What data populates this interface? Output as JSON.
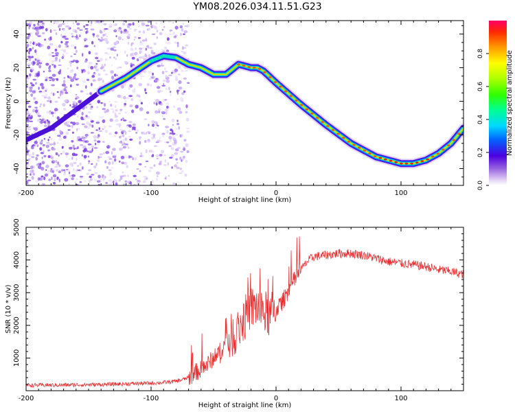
{
  "title": "YM08.2026.034.11.51.G23",
  "chart_data": [
    {
      "type": "heatmap",
      "title": "YM08.2026.034.11.51.G23",
      "xlabel": "Height of straight line (km)",
      "ylabel": "Frequency (Hz)",
      "xlim": [
        -200,
        150
      ],
      "ylim": [
        -50,
        48
      ],
      "xticks": [
        -200,
        -100,
        0,
        100
      ],
      "yticks": [
        -40,
        -20,
        0,
        20,
        40
      ],
      "colorbar": {
        "label": "Normalized spectral amplitude",
        "range": [
          0.0,
          1.0
        ],
        "ticks": [
          0.0,
          0.2,
          0.4,
          0.6,
          0.8
        ]
      },
      "ridge": {
        "x": [
          -200,
          -180,
          -160,
          -140,
          -120,
          -100,
          -90,
          -80,
          -70,
          -60,
          -50,
          -40,
          -30,
          -20,
          -15,
          -10,
          0,
          20,
          40,
          60,
          80,
          100,
          110,
          120,
          130,
          140,
          150
        ],
        "y": [
          -23,
          -16,
          -5,
          6,
          14,
          24,
          27,
          26,
          22,
          20,
          16,
          16,
          22,
          20,
          20,
          18,
          11,
          -2,
          -14,
          -25,
          -33,
          -37,
          -37,
          -35,
          -31,
          -25,
          -16
        ]
      }
    },
    {
      "type": "line",
      "xlabel": "Height of straight line (km)",
      "ylabel": "SNR (10 * v/v)",
      "xlim": [
        -200,
        150
      ],
      "ylim": [
        0,
        5000
      ],
      "xticks": [
        -200,
        -100,
        0,
        100
      ],
      "yticks": [
        1000,
        2000,
        3000,
        4000,
        5000
      ],
      "color": "#e83030",
      "series": [
        {
          "name": "SNR",
          "x": [
            -200,
            -180,
            -160,
            -140,
            -120,
            -100,
            -90,
            -80,
            -75,
            -70,
            -65,
            -60,
            -55,
            -50,
            -45,
            -40,
            -35,
            -30,
            -25,
            -22,
            -20,
            -15,
            -10,
            -5,
            0,
            5,
            10,
            15,
            20,
            25,
            30,
            40,
            50,
            60,
            70,
            80,
            90,
            100,
            110,
            120,
            130,
            140,
            150
          ],
          "y": [
            170,
            170,
            180,
            190,
            210,
            230,
            250,
            290,
            340,
            400,
            550,
            650,
            800,
            1000,
            1200,
            1450,
            1700,
            1900,
            2200,
            2500,
            2500,
            2600,
            2400,
            2300,
            2500,
            2700,
            3100,
            3400,
            3700,
            3950,
            4100,
            4150,
            4200,
            4200,
            4150,
            4050,
            3950,
            3900,
            3850,
            3800,
            3700,
            3650,
            3550
          ]
        }
      ]
    }
  ]
}
